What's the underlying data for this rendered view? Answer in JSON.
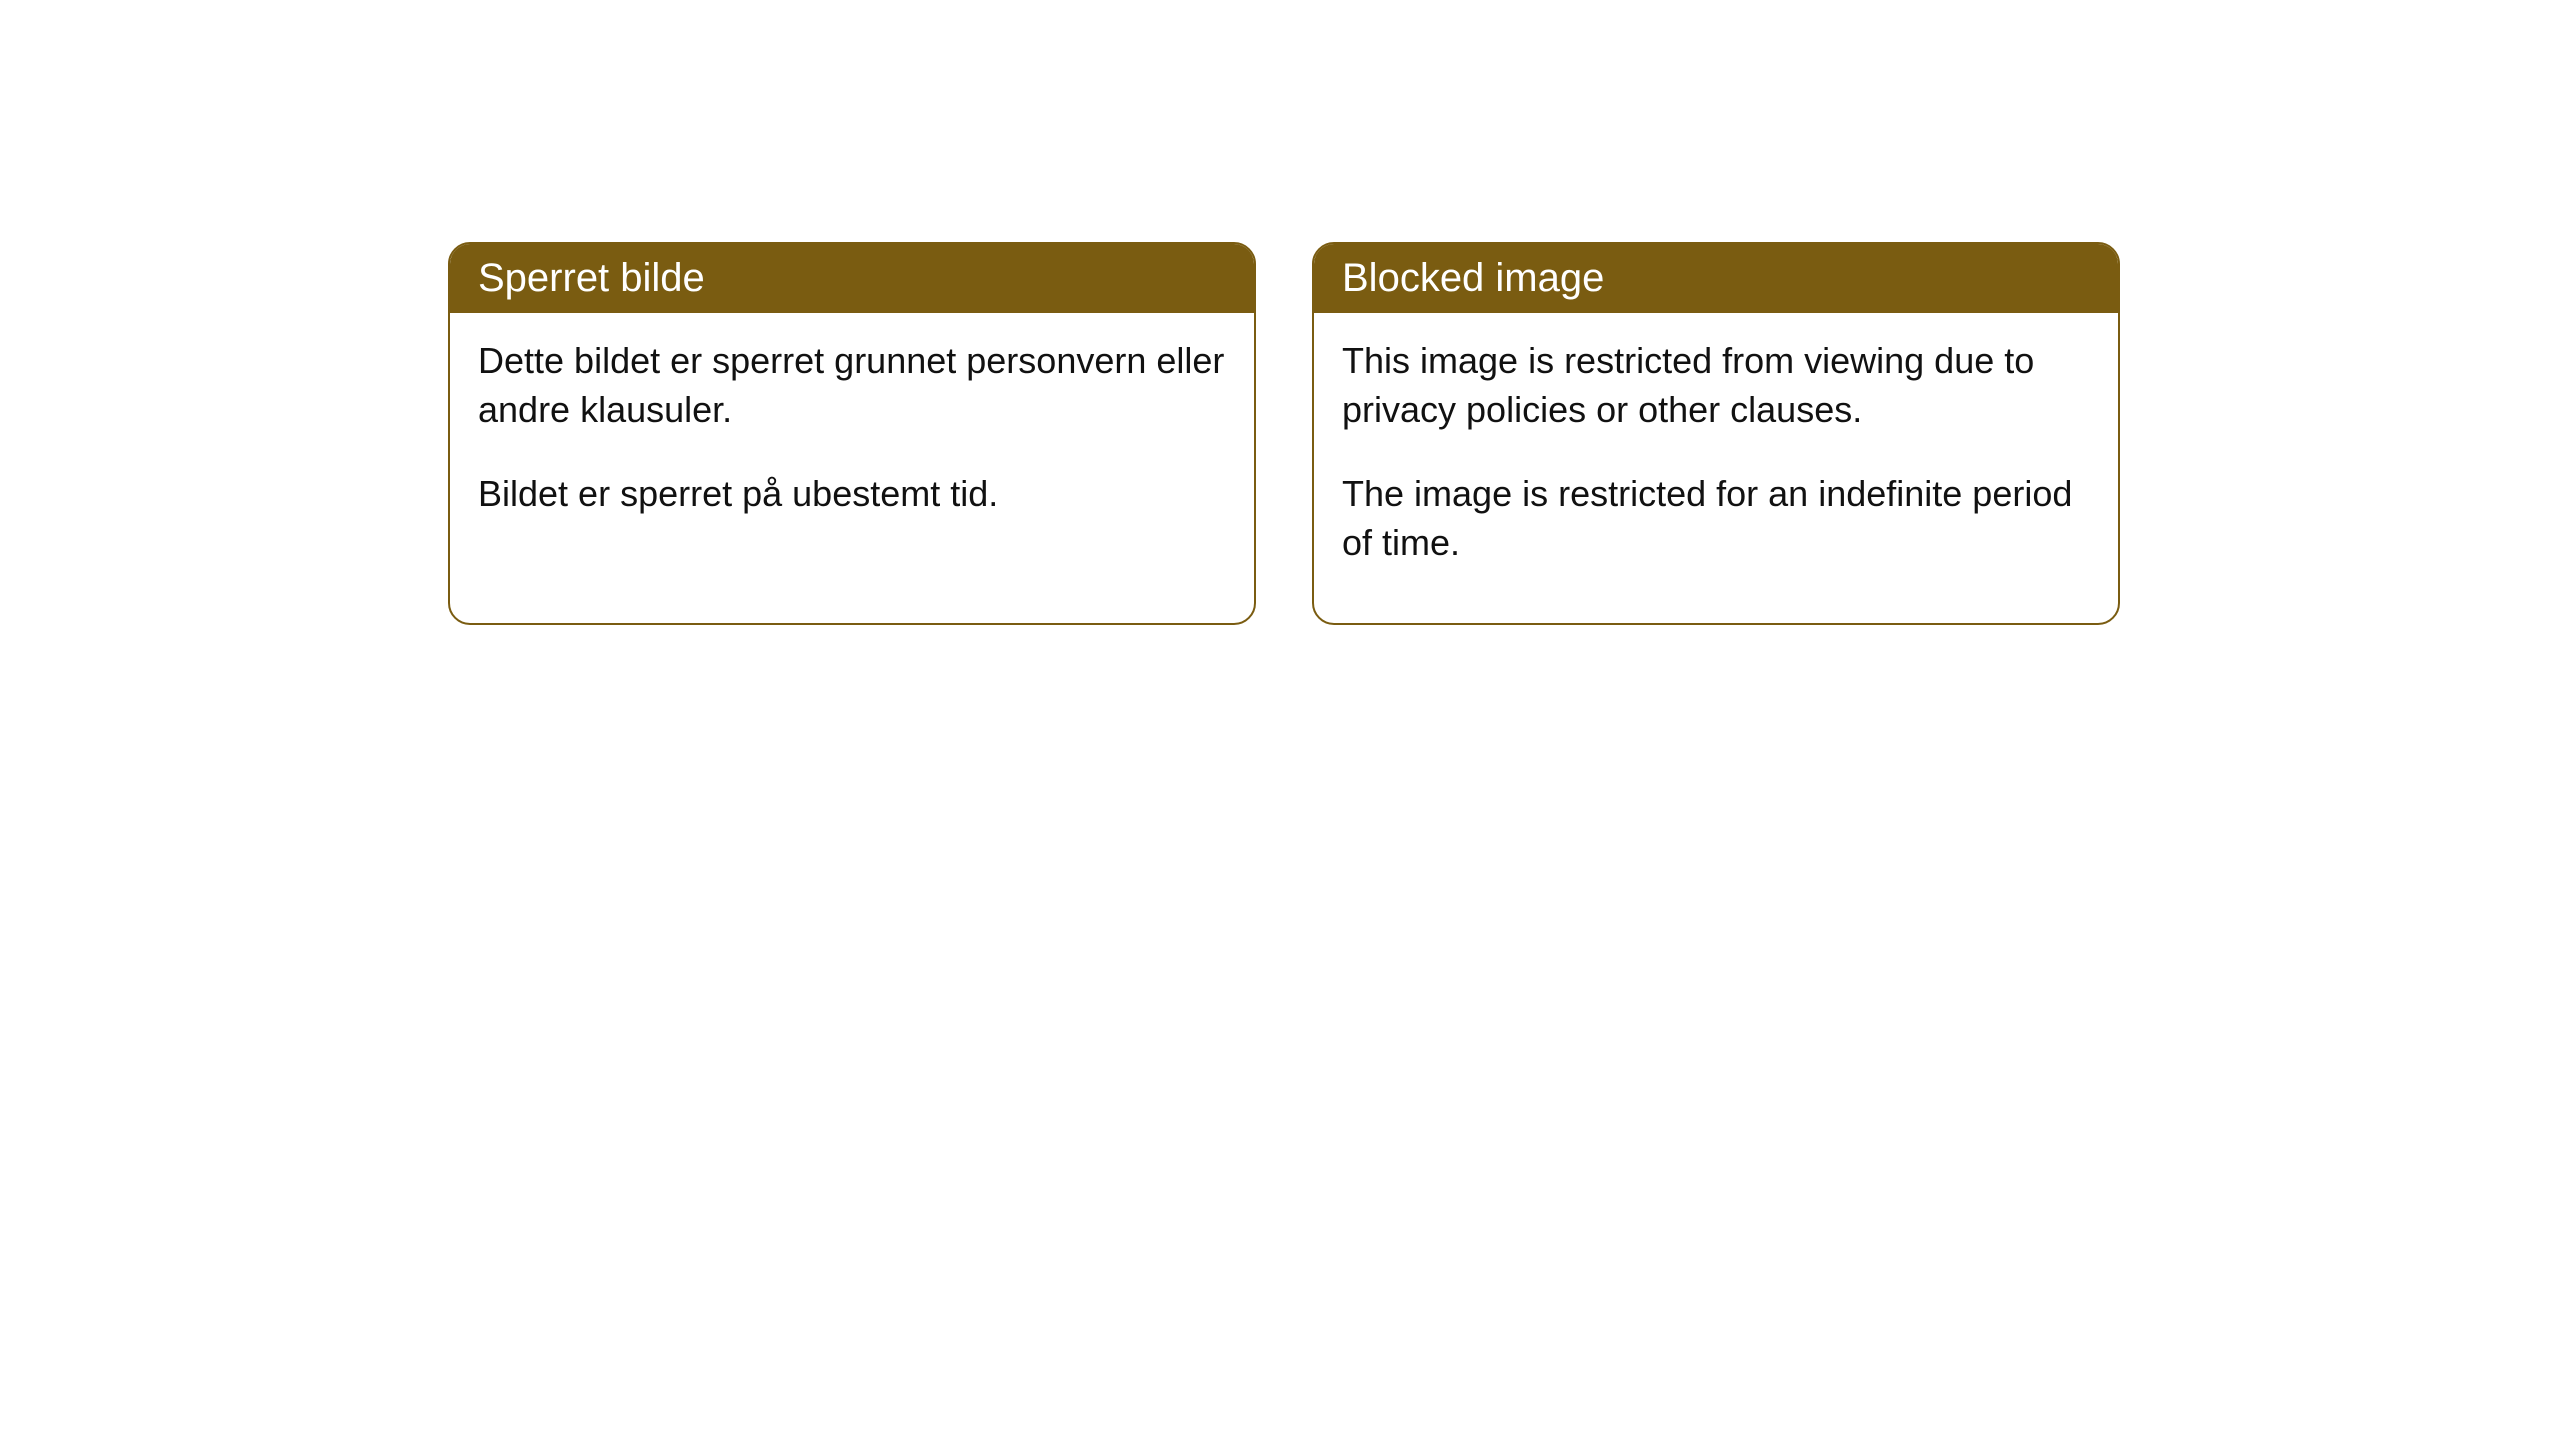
{
  "cards": [
    {
      "title": "Sperret bilde",
      "paragraph1": "Dette bildet er sperret grunnet personvern eller andre klausuler.",
      "paragraph2": "Bildet er sperret på ubestemt tid."
    },
    {
      "title": "Blocked image",
      "paragraph1": "This image is restricted from viewing due to privacy policies or other clauses.",
      "paragraph2": "The image is restricted for an indefinite period of time."
    }
  ],
  "style": {
    "header_bg_color": "#7a5c11",
    "header_text_color": "#ffffff",
    "border_color": "#7a5c11",
    "body_text_color": "#111111",
    "page_bg_color": "#ffffff",
    "border_radius": 22,
    "title_fontsize": 40,
    "body_fontsize": 36
  }
}
